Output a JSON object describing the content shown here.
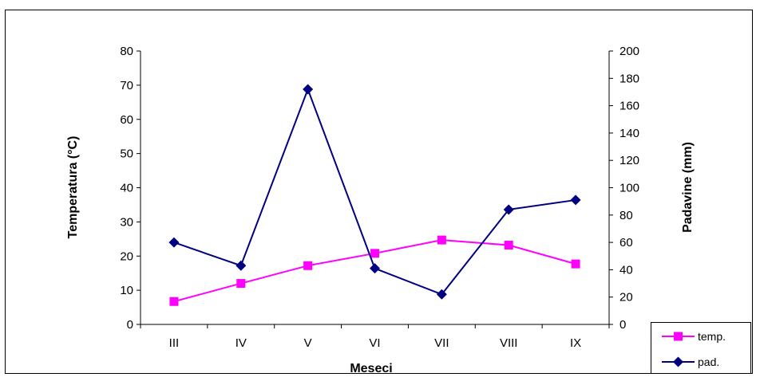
{
  "chart_data": {
    "type": "line",
    "categories": [
      "III",
      "IV",
      "V",
      "VI",
      "VII",
      "VIII",
      "IX"
    ],
    "xlabel": "Meseci",
    "ylabel_left": "Temperatura (°C)",
    "ylabel_right": "Padavine (mm)",
    "ylim_left": [
      0,
      80
    ],
    "ylim_right": [
      0,
      200
    ],
    "yticks_left": [
      "0",
      "10",
      "20",
      "30",
      "40",
      "50",
      "60",
      "70",
      "80"
    ],
    "yticks_right": [
      "0",
      "20",
      "40",
      "60",
      "80",
      "100",
      "120",
      "140",
      "160",
      "180",
      "200"
    ],
    "grid": false,
    "legend_position": "bottom-right",
    "series": [
      {
        "name": "temp.",
        "axis": "left",
        "color": "#ff00ff",
        "marker": "square",
        "values": [
          6.7,
          12.0,
          17.2,
          20.8,
          24.7,
          23.2,
          17.7
        ]
      },
      {
        "name": "pad.",
        "axis": "right",
        "color": "#000080",
        "marker": "diamond",
        "values": [
          60,
          43,
          172,
          41,
          22,
          84,
          91
        ]
      }
    ]
  }
}
